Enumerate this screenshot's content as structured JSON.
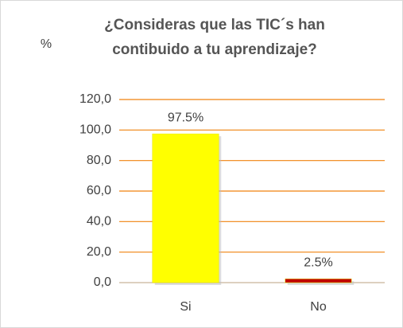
{
  "chart_data": {
    "type": "bar",
    "title": [
      "¿Consideras que las  TIC´s han",
      "contibuido a tu aprendizaje?"
    ],
    "y_label": "%",
    "categories": [
      "Si",
      "No"
    ],
    "values": [
      97.5,
      2.5
    ],
    "value_labels": [
      "97.5%",
      "2.5%"
    ],
    "colors": [
      "#ffff00",
      "#c00000"
    ],
    "ylim": [
      0,
      120
    ],
    "yticks": [
      {
        "value": 0,
        "label": "0,0"
      },
      {
        "value": 20,
        "label": "20,0"
      },
      {
        "value": 40,
        "label": "40,0"
      },
      {
        "value": 60,
        "label": "60,0"
      },
      {
        "value": 80,
        "label": "80,0"
      },
      {
        "value": 100,
        "label": "100,0"
      },
      {
        "value": 120,
        "label": "120,0"
      }
    ],
    "grid": true,
    "grid_color": "#f0820f"
  }
}
